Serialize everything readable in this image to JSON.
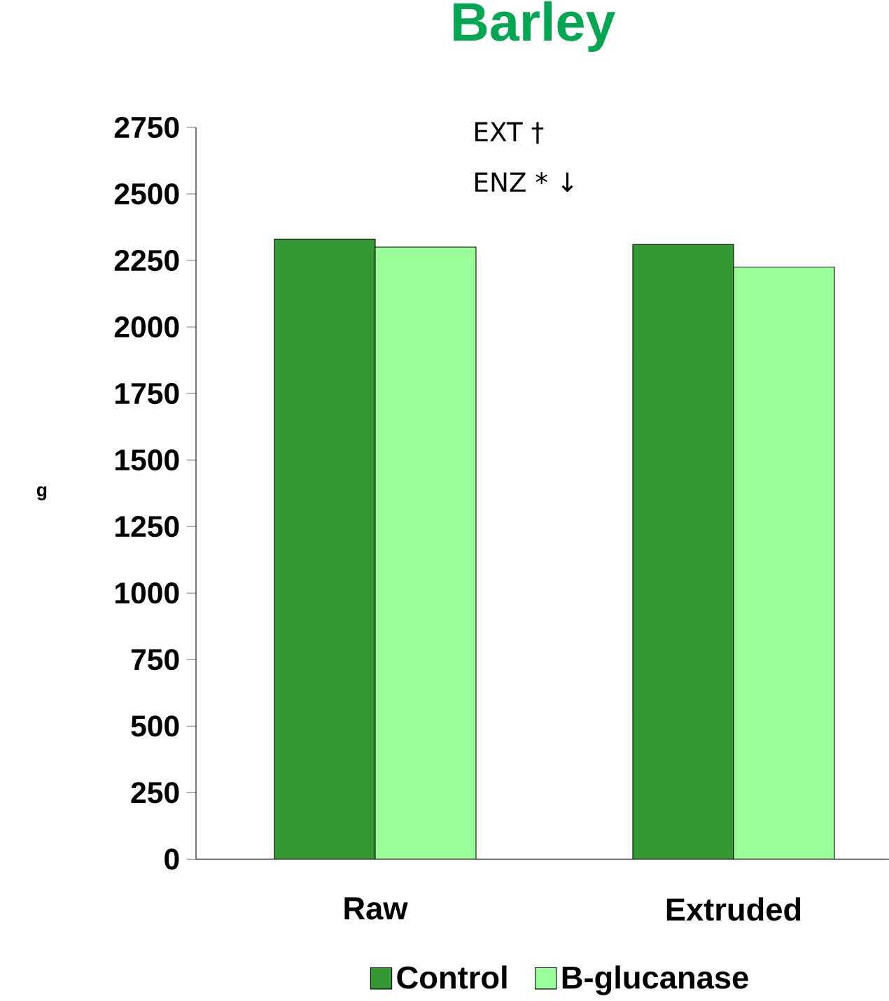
{
  "chart_data": {
    "type": "bar",
    "title": "Barley",
    "ylabel": "g",
    "categories": [
      "Raw",
      "Extruded"
    ],
    "series": [
      {
        "name": "Control",
        "color": "#339933",
        "values": [
          2330,
          2310
        ]
      },
      {
        "name": "B-glucanase",
        "color": "#99ff99",
        "values": [
          2300,
          2225
        ]
      }
    ],
    "ylim": [
      0,
      2750
    ],
    "yticks": [
      0,
      250,
      500,
      750,
      1000,
      1250,
      1500,
      1750,
      2000,
      2250,
      2500,
      2750
    ],
    "annotations": [
      "EXT †",
      "ENZ * ↓"
    ],
    "grid": false,
    "legend": "bottom"
  }
}
